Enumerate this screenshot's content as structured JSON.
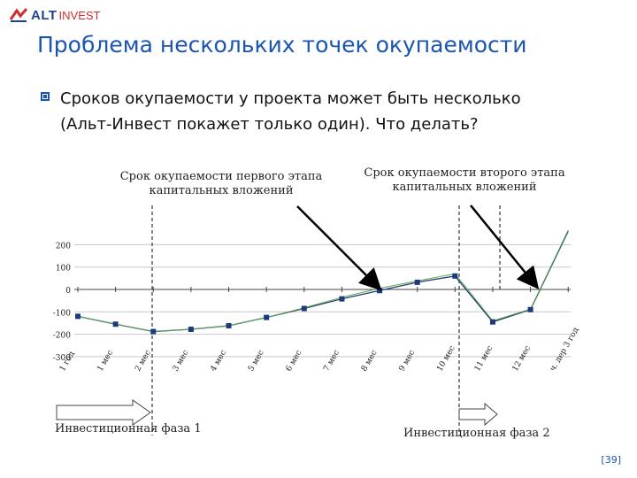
{
  "logo": {
    "brand": "ALT",
    "brand2": "INVEST"
  },
  "title": "Проблема нескольких точек окупаемости",
  "bullet": {
    "line1": "Сроков окупаемости у проекта может быть несколько",
    "line2": "(Альт-Инвест покажет только один). Что делать?"
  },
  "annotations": {
    "first": "Срок окупаемости первого этапа\nкапитальных вложений",
    "second": "Срок окупаемости второго этапа\nкапитальных вложений",
    "phase1": "Инвестиционная фаза 1",
    "phase2": "Инвестиционная фаза 2"
  },
  "page_number": "[39]",
  "colors": {
    "title": "#1a55b2",
    "series1": "#1f3a7a",
    "series2": "#5fa84a",
    "arrow": "#000000"
  },
  "chart_data": {
    "type": "line",
    "y_ticks": [
      "200",
      "100",
      "0",
      "-100",
      "-200",
      "-300"
    ],
    "y_tick_values": [
      200,
      100,
      0,
      -100,
      -200,
      -300
    ],
    "ylim": [
      -300,
      220
    ],
    "categories": [
      "1 год",
      "1 мес",
      "2 мес",
      "3 мес",
      "4 мес",
      "5 мес",
      "6 мес",
      "7 мес",
      "8 мес",
      "9 мес",
      "10 мес",
      "11 мес",
      "12 мес",
      "ч. дер 3 год"
    ],
    "series": [
      {
        "values": [
          -120,
          -155,
          -188,
          -178,
          -162,
          -125,
          -85,
          -42,
          -5,
          32,
          60,
          -145,
          -90,
          260
        ]
      },
      {
        "values": [
          -120,
          -155,
          -188,
          -178,
          -162,
          -125,
          -82,
          -35,
          5,
          38,
          70,
          -140,
          -88,
          265
        ]
      }
    ],
    "grid": true
  }
}
